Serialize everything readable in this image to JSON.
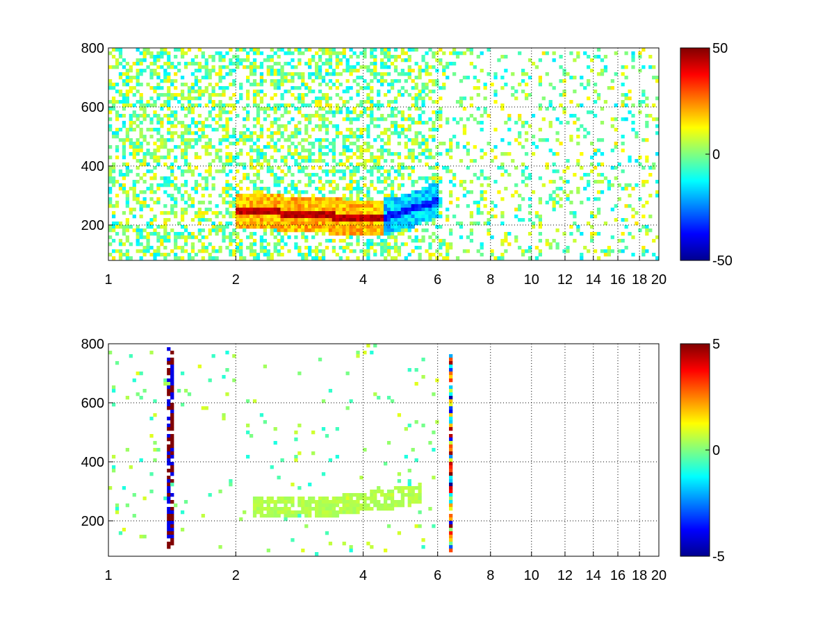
{
  "chart_data": [
    {
      "type": "heatmap",
      "title": "",
      "xlabel": "",
      "ylabel": "",
      "x_scale": "log",
      "xlim": [
        1,
        20
      ],
      "ylim": [
        80,
        800
      ],
      "grid": true,
      "x_ticks": [
        1,
        2,
        4,
        6,
        8,
        10,
        12,
        14,
        16,
        18,
        20
      ],
      "y_ticks": [
        200,
        400,
        600,
        800
      ],
      "colorbar": {
        "min": -50,
        "max": 50,
        "ticks": [
          50,
          0,
          -50
        ],
        "colormap": "jet",
        "position": "right"
      },
      "features": [
        {
          "x_range": [
            2,
            5.2
          ],
          "y": 250,
          "value": 40,
          "note": "positive ridge"
        },
        {
          "x_range": [
            4.5,
            6
          ],
          "y": 290,
          "value": -35,
          "note": "negative ridge"
        },
        {
          "x_range": [
            1,
            20
          ],
          "y_range": [
            80,
            800
          ],
          "value": 0,
          "note": "scattered near-zero values"
        }
      ]
    },
    {
      "type": "heatmap",
      "title": "",
      "xlabel": "",
      "ylabel": "",
      "x_scale": "log",
      "xlim": [
        1,
        20
      ],
      "ylim": [
        80,
        800
      ],
      "grid": true,
      "x_ticks": [
        1,
        2,
        4,
        6,
        8,
        10,
        12,
        14,
        16,
        18,
        20
      ],
      "y_ticks": [
        200,
        400,
        600,
        800
      ],
      "colorbar": {
        "min": -5,
        "max": 5,
        "ticks": [
          5,
          0,
          -5
        ],
        "colormap": "jet",
        "position": "right"
      },
      "features": [
        {
          "x_range": [
            2.2,
            5.5
          ],
          "y": 250,
          "value": 0.5,
          "note": "near-zero band"
        },
        {
          "x": 6.45,
          "y_range": [
            90,
            760
          ],
          "value": -3,
          "note": "vertical streak, mixed values"
        },
        {
          "x": 1.4,
          "y_range": [
            100,
            800
          ],
          "value": 5,
          "note": "vertical streak"
        }
      ]
    }
  ]
}
